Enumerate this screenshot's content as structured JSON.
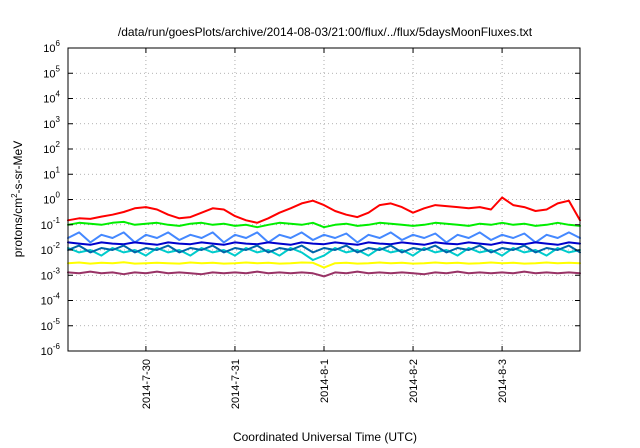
{
  "chart_data": {
    "type": "line",
    "title": "/data/run/goesPlots/archive/2014-08-03/21:00/flux/../flux/5daysMoonFluxes.txt",
    "xlabel": "Coordinated Universal Time (UTC)",
    "ylabel_parts": {
      "base": "protons/cm",
      "sup": "2",
      "rest": "-s-sr-MeV"
    },
    "y_scale": "log",
    "ylim": [
      1e-06,
      1000000.0
    ],
    "y_ticks": [
      {
        "value": 1e-06,
        "base": "10",
        "exp": "-6"
      },
      {
        "value": 1e-05,
        "base": "10",
        "exp": "-5"
      },
      {
        "value": 0.0001,
        "base": "10",
        "exp": "-4"
      },
      {
        "value": 0.001,
        "base": "10",
        "exp": "-3"
      },
      {
        "value": 0.01,
        "base": "10",
        "exp": "-2"
      },
      {
        "value": 0.1,
        "base": "10",
        "exp": "-1"
      },
      {
        "value": 1.0,
        "base": "10",
        "exp": "0"
      },
      {
        "value": 10.0,
        "base": "10",
        "exp": "1"
      },
      {
        "value": 100.0,
        "base": "10",
        "exp": "2"
      },
      {
        "value": 1000.0,
        "base": "10",
        "exp": "3"
      },
      {
        "value": 10000.0,
        "base": "10",
        "exp": "4"
      },
      {
        "value": 100000.0,
        "base": "10",
        "exp": "5"
      },
      {
        "value": 1000000.0,
        "base": "10",
        "exp": "6"
      }
    ],
    "xlim": [
      "2014-07-29 03:00",
      "2014-08-03 21:00"
    ],
    "x_ticks": [
      {
        "value": "2014-07-30 00:00",
        "label": "2014-7-30"
      },
      {
        "value": "2014-07-31 00:00",
        "label": "2014-7-31"
      },
      {
        "value": "2014-08-01 00:00",
        "label": "2014-8-1"
      },
      {
        "value": "2014-08-02 00:00",
        "label": "2014-8-2"
      },
      {
        "value": "2014-08-03 00:00",
        "label": "2014-8-3"
      }
    ],
    "grid": true,
    "x_dates": [
      "2014-07-29 03:00",
      "2014-07-29 06:00",
      "2014-07-29 09:00",
      "2014-07-29 12:00",
      "2014-07-29 15:00",
      "2014-07-29 18:00",
      "2014-07-29 21:00",
      "2014-07-30 00:00",
      "2014-07-30 03:00",
      "2014-07-30 06:00",
      "2014-07-30 09:00",
      "2014-07-30 12:00",
      "2014-07-30 15:00",
      "2014-07-30 18:00",
      "2014-07-30 21:00",
      "2014-07-31 00:00",
      "2014-07-31 03:00",
      "2014-07-31 06:00",
      "2014-07-31 09:00",
      "2014-07-31 12:00",
      "2014-07-31 15:00",
      "2014-07-31 18:00",
      "2014-07-31 21:00",
      "2014-08-01 00:00",
      "2014-08-01 03:00",
      "2014-08-01 06:00",
      "2014-08-01 09:00",
      "2014-08-01 12:00",
      "2014-08-01 15:00",
      "2014-08-01 18:00",
      "2014-08-01 21:00",
      "2014-08-02 00:00",
      "2014-08-02 03:00",
      "2014-08-02 06:00",
      "2014-08-02 09:00",
      "2014-08-02 12:00",
      "2014-08-02 15:00",
      "2014-08-02 18:00",
      "2014-08-02 21:00",
      "2014-08-03 00:00",
      "2014-08-03 03:00",
      "2014-08-03 06:00",
      "2014-08-03 09:00",
      "2014-08-03 12:00",
      "2014-08-03 15:00",
      "2014-08-03 18:00",
      "2014-08-03 21:00"
    ],
    "series": [
      {
        "color": "#ff0000",
        "values": [
          0.15,
          0.18,
          0.17,
          0.21,
          0.25,
          0.32,
          0.45,
          0.5,
          0.4,
          0.25,
          0.18,
          0.2,
          0.3,
          0.45,
          0.4,
          0.22,
          0.15,
          0.12,
          0.18,
          0.3,
          0.45,
          0.7,
          0.9,
          0.6,
          0.35,
          0.25,
          0.2,
          0.3,
          0.6,
          0.7,
          0.5,
          0.3,
          0.45,
          0.6,
          0.55,
          0.5,
          0.45,
          0.5,
          0.4,
          1.2,
          0.6,
          0.5,
          0.35,
          0.4,
          0.7,
          0.9,
          0.15
        ]
      },
      {
        "color": "#00ee00",
        "values": [
          0.1,
          0.12,
          0.11,
          0.1,
          0.12,
          0.13,
          0.1,
          0.11,
          0.12,
          0.1,
          0.09,
          0.11,
          0.12,
          0.1,
          0.11,
          0.09,
          0.1,
          0.08,
          0.1,
          0.12,
          0.11,
          0.1,
          0.12,
          0.08,
          0.1,
          0.11,
          0.09,
          0.1,
          0.12,
          0.11,
          0.1,
          0.09,
          0.1,
          0.12,
          0.11,
          0.1,
          0.09,
          0.11,
          0.1,
          0.12,
          0.1,
          0.11,
          0.09,
          0.1,
          0.12,
          0.1,
          0.09
        ]
      },
      {
        "color": "#4488ff",
        "values": [
          0.03,
          0.05,
          0.02,
          0.04,
          0.03,
          0.05,
          0.02,
          0.04,
          0.03,
          0.05,
          0.025,
          0.04,
          0.03,
          0.05,
          0.02,
          0.04,
          0.03,
          0.05,
          0.02,
          0.04,
          0.03,
          0.05,
          0.025,
          0.04,
          0.03,
          0.045,
          0.02,
          0.04,
          0.03,
          0.05,
          0.025,
          0.04,
          0.03,
          0.045,
          0.02,
          0.04,
          0.03,
          0.05,
          0.025,
          0.04,
          0.03,
          0.045,
          0.02,
          0.04,
          0.03,
          0.05,
          0.03
        ]
      },
      {
        "color": "#0000cc",
        "values": [
          0.02,
          0.018,
          0.016,
          0.02,
          0.018,
          0.017,
          0.02,
          0.018,
          0.016,
          0.02,
          0.018,
          0.017,
          0.02,
          0.018,
          0.016,
          0.02,
          0.018,
          0.017,
          0.02,
          0.018,
          0.016,
          0.02,
          0.018,
          0.017,
          0.02,
          0.018,
          0.016,
          0.02,
          0.018,
          0.017,
          0.02,
          0.018,
          0.016,
          0.02,
          0.018,
          0.017,
          0.02,
          0.018,
          0.016,
          0.02,
          0.018,
          0.017,
          0.02,
          0.018,
          0.016,
          0.02,
          0.018
        ]
      },
      {
        "color": "#00cccc",
        "values": [
          0.012,
          0.008,
          0.01,
          0.006,
          0.012,
          0.008,
          0.01,
          0.006,
          0.012,
          0.008,
          0.01,
          0.006,
          0.012,
          0.008,
          0.01,
          0.006,
          0.012,
          0.008,
          0.01,
          0.006,
          0.012,
          0.008,
          0.004,
          0.006,
          0.012,
          0.008,
          0.01,
          0.006,
          0.012,
          0.008,
          0.01,
          0.006,
          0.012,
          0.008,
          0.01,
          0.006,
          0.012,
          0.008,
          0.01,
          0.006,
          0.012,
          0.008,
          0.01,
          0.006,
          0.012,
          0.008,
          0.01
        ]
      },
      {
        "color": "#0066aa",
        "values": [
          0.01,
          0.015,
          0.008,
          0.012,
          0.01,
          0.015,
          0.008,
          0.012,
          0.01,
          0.015,
          0.008,
          0.012,
          0.01,
          0.015,
          0.008,
          0.012,
          0.01,
          0.015,
          0.008,
          0.012,
          0.01,
          0.015,
          0.008,
          0.012,
          0.01,
          0.015,
          0.008,
          0.012,
          0.01,
          0.015,
          0.008,
          0.012,
          0.01,
          0.015,
          0.008,
          0.012,
          0.01,
          0.015,
          0.008,
          0.012,
          0.01,
          0.015,
          0.008,
          0.012,
          0.01,
          0.015,
          0.008
        ]
      },
      {
        "color": "#ffff00",
        "values": [
          0.003,
          0.0032,
          0.0029,
          0.0031,
          0.003,
          0.0033,
          0.0029,
          0.003,
          0.0031,
          0.003,
          0.0029,
          0.0032,
          0.003,
          0.0031,
          0.0029,
          0.003,
          0.0032,
          0.003,
          0.0031,
          0.0029,
          0.003,
          0.0032,
          0.0031,
          0.002,
          0.003,
          0.0031,
          0.0029,
          0.003,
          0.0032,
          0.003,
          0.0031,
          0.0029,
          0.003,
          0.0032,
          0.003,
          0.0031,
          0.0029,
          0.003,
          0.0032,
          0.003,
          0.0031,
          0.0029,
          0.003,
          0.0032,
          0.003,
          0.0031,
          0.003
        ]
      },
      {
        "color": "#993366",
        "values": [
          0.0013,
          0.0012,
          0.0014,
          0.0012,
          0.0013,
          0.0011,
          0.0013,
          0.0012,
          0.0014,
          0.0012,
          0.0013,
          0.0012,
          0.0011,
          0.0013,
          0.0012,
          0.0013,
          0.0012,
          0.0014,
          0.0012,
          0.0013,
          0.0012,
          0.0013,
          0.0012,
          0.0009,
          0.0013,
          0.0012,
          0.0014,
          0.0012,
          0.0013,
          0.0012,
          0.0013,
          0.0012,
          0.0011,
          0.0013,
          0.0012,
          0.0014,
          0.0012,
          0.0013,
          0.0012,
          0.0013,
          0.0012,
          0.0014,
          0.0012,
          0.0013,
          0.0012,
          0.0013,
          0.0012
        ]
      }
    ]
  }
}
